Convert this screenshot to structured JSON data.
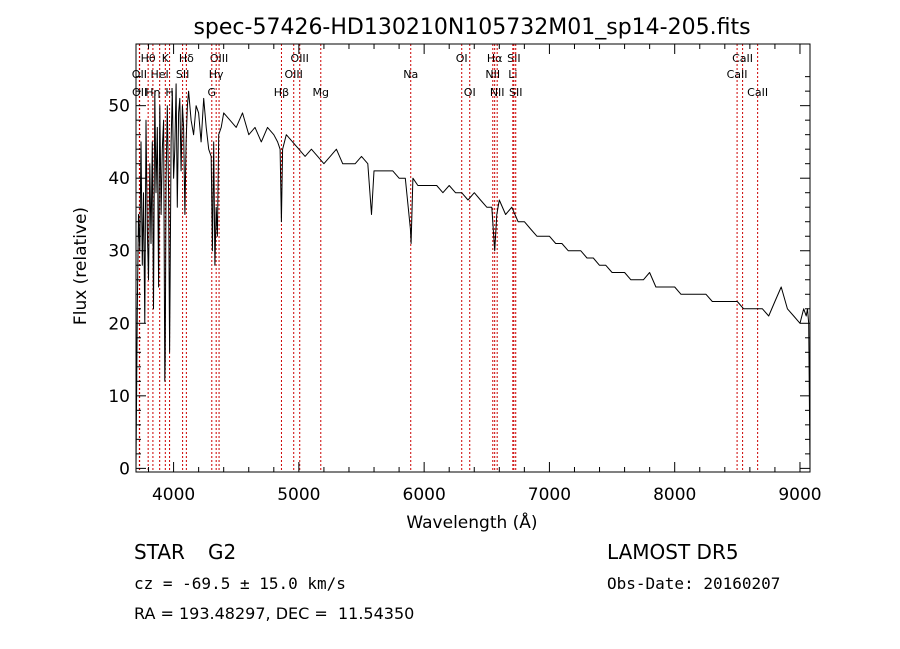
{
  "chart_data": {
    "type": "line",
    "title": "spec-57426-HD130210N105732M01_sp14-205.fits",
    "xlabel": "Wavelength (Å)",
    "ylabel": "Flux (relative)",
    "xlim": [
      3700,
      9080
    ],
    "ylim": [
      -0.5,
      58.5
    ],
    "xticks": [
      4000,
      5000,
      6000,
      7000,
      8000,
      9000
    ],
    "yticks": [
      0,
      10,
      20,
      30,
      40,
      50
    ],
    "series": [
      {
        "x": [
          3700,
          3710,
          3720,
          3730,
          3740,
          3750,
          3760,
          3770,
          3780,
          3790,
          3800,
          3810,
          3820,
          3830,
          3840,
          3850,
          3860,
          3870,
          3880,
          3890,
          3900,
          3910,
          3920,
          3930,
          3933,
          3940,
          3950,
          3960,
          3968,
          3980,
          3990,
          4000,
          4010,
          4020,
          4030,
          4040,
          4050,
          4060,
          4070,
          4080,
          4090,
          4100,
          4110,
          4120,
          4140,
          4160,
          4180,
          4200,
          4220,
          4240,
          4260,
          4280,
          4300,
          4310,
          4320,
          4330,
          4340,
          4350,
          4360,
          4380,
          4400,
          4450,
          4500,
          4550,
          4600,
          4650,
          4700,
          4750,
          4800,
          4830,
          4850,
          4861,
          4870,
          4900,
          4950,
          5000,
          5050,
          5100,
          5150,
          5200,
          5250,
          5300,
          5350,
          5400,
          5450,
          5500,
          5550,
          5580,
          5600,
          5650,
          5700,
          5750,
          5800,
          5850,
          5890,
          5896,
          5910,
          5950,
          6000,
          6050,
          6100,
          6150,
          6200,
          6250,
          6300,
          6350,
          6400,
          6450,
          6500,
          6540,
          6563,
          6580,
          6600,
          6650,
          6700,
          6750,
          6800,
          6850,
          6900,
          6950,
          7000,
          7050,
          7100,
          7150,
          7200,
          7250,
          7300,
          7350,
          7400,
          7450,
          7500,
          7550,
          7600,
          7650,
          7700,
          7750,
          7800,
          7850,
          7900,
          7950,
          8000,
          8050,
          8100,
          8150,
          8200,
          8250,
          8300,
          8350,
          8400,
          8450,
          8500,
          8550,
          8600,
          8650,
          8700,
          8750,
          8800,
          8850,
          8900,
          8950,
          9000,
          9030,
          9050,
          9060,
          9070,
          9080
        ],
        "values": [
          0,
          22,
          35,
          30,
          45,
          28,
          38,
          20,
          48,
          33,
          26,
          42,
          31,
          45,
          22,
          52,
          38,
          47,
          25,
          50,
          35,
          44,
          48,
          12,
          15,
          40,
          50,
          38,
          16,
          45,
          52,
          40,
          44,
          53,
          36,
          49,
          51,
          41,
          50,
          47,
          35,
          45,
          50,
          52,
          48,
          46,
          50,
          49,
          45,
          51,
          47,
          44,
          43,
          30,
          45,
          28,
          36,
          32,
          46,
          47,
          49,
          48,
          47,
          49,
          46,
          47,
          45,
          47,
          46,
          45,
          44,
          34,
          44,
          46,
          45,
          44,
          43,
          44,
          43,
          42,
          43,
          44,
          42,
          42,
          42,
          43,
          42,
          35,
          41,
          41,
          41,
          41,
          40,
          40,
          33,
          31,
          40,
          39,
          39,
          39,
          39,
          38,
          39,
          38,
          38,
          37,
          38,
          37,
          36,
          36,
          30,
          35,
          37,
          35,
          36,
          34,
          34,
          33,
          32,
          32,
          32,
          31,
          31,
          30,
          30,
          30,
          29,
          29,
          28,
          28,
          27,
          27,
          27,
          26,
          26,
          26,
          27,
          25,
          25,
          25,
          25,
          24,
          24,
          24,
          24,
          24,
          23,
          23,
          23,
          23,
          23,
          22,
          22,
          22,
          22,
          21,
          23,
          25,
          22,
          21,
          20,
          22,
          21,
          22,
          20,
          0
        ]
      }
    ],
    "line_markers": [
      {
        "label": "Hθ",
        "x": 3797,
        "row": 1
      },
      {
        "label": "K",
        "x": 3934,
        "row": 1
      },
      {
        "label": "Hδ",
        "x": 4102,
        "row": 1
      },
      {
        "label": "OIII",
        "x": 4363,
        "row": 1
      },
      {
        "label": "OIII",
        "x": 5007,
        "row": 1
      },
      {
        "label": "OI",
        "x": 6300,
        "row": 1
      },
      {
        "label": "Hα",
        "x": 6563,
        "row": 1
      },
      {
        "label": "SII",
        "x": 6716,
        "row": 1
      },
      {
        "label": "CaII",
        "x": 8542,
        "row": 1
      },
      {
        "label": "OII",
        "x": 3727,
        "row": 2
      },
      {
        "label": "HeI",
        "x": 3889,
        "row": 2
      },
      {
        "label": "SII",
        "x": 4072,
        "row": 2
      },
      {
        "label": "Hγ",
        "x": 4340,
        "row": 2
      },
      {
        "label": "OIII",
        "x": 4959,
        "row": 2
      },
      {
        "label": "Na",
        "x": 5893,
        "row": 2
      },
      {
        "label": "NII",
        "x": 6548,
        "row": 2
      },
      {
        "label": "Li",
        "x": 6708,
        "row": 2
      },
      {
        "label": "CaII",
        "x": 8498,
        "row": 2
      },
      {
        "label": "OII",
        "x": 3729,
        "row": 3
      },
      {
        "label": "Hη",
        "x": 3835,
        "row": 3
      },
      {
        "label": "H",
        "x": 3968,
        "row": 3
      },
      {
        "label": "G",
        "x": 4305,
        "row": 3
      },
      {
        "label": "Hβ",
        "x": 4861,
        "row": 3
      },
      {
        "label": "Mg",
        "x": 5175,
        "row": 3
      },
      {
        "label": "OI",
        "x": 6364,
        "row": 3
      },
      {
        "label": "NII",
        "x": 6583,
        "row": 3
      },
      {
        "label": "SII",
        "x": 6731,
        "row": 3
      },
      {
        "label": "CaII",
        "x": 8662,
        "row": 3
      }
    ],
    "grid": false,
    "marker_color": "#cc0000",
    "line_color": "#000000"
  },
  "info": {
    "class": "STAR",
    "subclass": "G2",
    "survey": "LAMOST DR5",
    "cz": "cz = -69.5 ± 15.0 km/s",
    "obs_date": "Obs-Date: 20160207",
    "coords": "RA = 193.48297, DEC =  11.54350"
  }
}
